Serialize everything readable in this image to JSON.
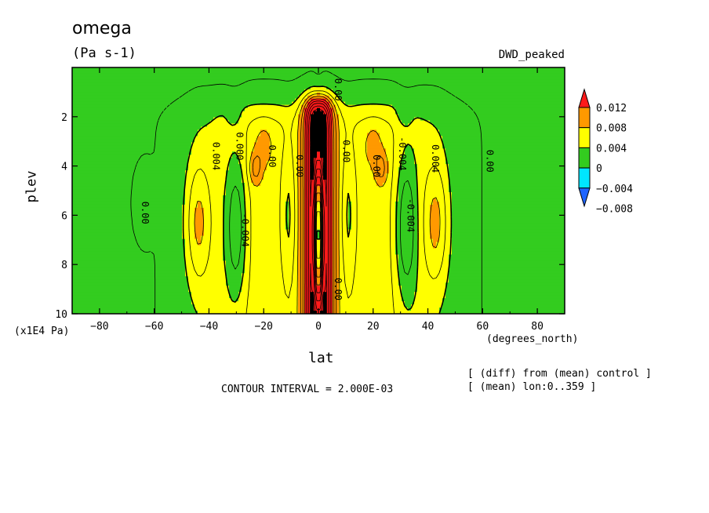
{
  "chart_data": {
    "type": "heatmap",
    "title": "omega",
    "units": "(Pa s-1)",
    "subtitle": "DWD_peaked",
    "xlabel": "lat",
    "xunit": "(degrees_north)",
    "ylabel": "plev",
    "yunit": "(x1E4 Pa)",
    "xlim": [
      -90,
      90
    ],
    "ylim": [
      10,
      0
    ],
    "x_ticks": [
      -80,
      -60,
      -40,
      -20,
      0,
      20,
      40,
      60,
      80
    ],
    "x_tick_labels": [
      "−80",
      "−60",
      "−40",
      "−20",
      "0",
      "20",
      "40",
      "60",
      "80"
    ],
    "y_ticks": [
      2,
      4,
      6,
      8,
      10
    ],
    "y_tick_labels": [
      "2",
      "4",
      "6",
      "8",
      "10"
    ],
    "contour_interval_text": "CONTOUR INTERVAL = 2.000E-03",
    "notes": [
      "[ (diff) from (mean) control ]",
      "[ (mean) lon:0..359 ]"
    ],
    "colorbar": {
      "levels": [
        -0.012,
        -0.008,
        -0.004,
        0,
        0.004,
        0.008,
        0.012,
        0.016
      ],
      "labels": [
        "0.012",
        "0.008",
        "0.004",
        "0",
        "−0.004",
        "−0.008"
      ],
      "colors": [
        "#1e64ff",
        "#00e6ff",
        "#33cc1f",
        "#ffff00",
        "#ff9900",
        "#ff1a1a"
      ]
    },
    "contour_labels": [
      {
        "text": "0.00",
        "x": -64.5,
        "y": 5.9
      },
      {
        "text": "0.004",
        "x": -38.5,
        "y": 3.6
      },
      {
        "text": "0.000",
        "x": -30,
        "y": 3.2
      },
      {
        "text": "-0.004",
        "x": -28,
        "y": 6.6
      },
      {
        "text": "0.00",
        "x": -18,
        "y": 3.6
      },
      {
        "text": "0.00",
        "x": -8,
        "y": 4.0
      },
      {
        "text": "0.00",
        "x": 6,
        "y": 0.9
      },
      {
        "text": "0.00",
        "x": 9,
        "y": 3.4
      },
      {
        "text": "0.00",
        "x": 6,
        "y": 9.0
      },
      {
        "text": "0.00",
        "x": 20,
        "y": 4.0
      },
      {
        "text": "-0.004",
        "x": 32.5,
        "y": 6.0
      },
      {
        "text": "-0.004",
        "x": 29.5,
        "y": 3.5
      },
      {
        "text": "0.004",
        "x": 41.5,
        "y": 3.7
      },
      {
        "text": "0.00",
        "x": 61.5,
        "y": 3.8
      }
    ],
    "field_features": [
      {
        "sign": "positive",
        "lat": 0,
        "plev_top": 1.2,
        "plev_bottom": 9.6,
        "peak": 0.016,
        "note": "strong equatorial core"
      },
      {
        "sign": "negative",
        "lat": 0,
        "plev_top": 3.2,
        "plev_bottom": 9.7,
        "peak": -0.008
      },
      {
        "sign": "positive",
        "lat": -44,
        "plev_top": 3.6,
        "plev_bottom": 9.0,
        "peak": 0.006
      },
      {
        "sign": "positive",
        "lat": 43,
        "plev_top": 3.6,
        "plev_bottom": 9.0,
        "peak": 0.006
      },
      {
        "sign": "negative",
        "lat": -30,
        "plev_top": 3.2,
        "plev_bottom": 9.4,
        "peak": -0.006
      },
      {
        "sign": "negative",
        "lat": 32,
        "plev_top": 3.2,
        "plev_bottom": 9.4,
        "peak": -0.006
      },
      {
        "sign": "positive",
        "lat": -23,
        "plev_top": 3.6,
        "plev_bottom": 4.4,
        "peak": 0.005
      },
      {
        "sign": "positive",
        "lat": 23,
        "plev_top": 3.6,
        "plev_bottom": 4.6,
        "peak": 0.005
      }
    ]
  }
}
